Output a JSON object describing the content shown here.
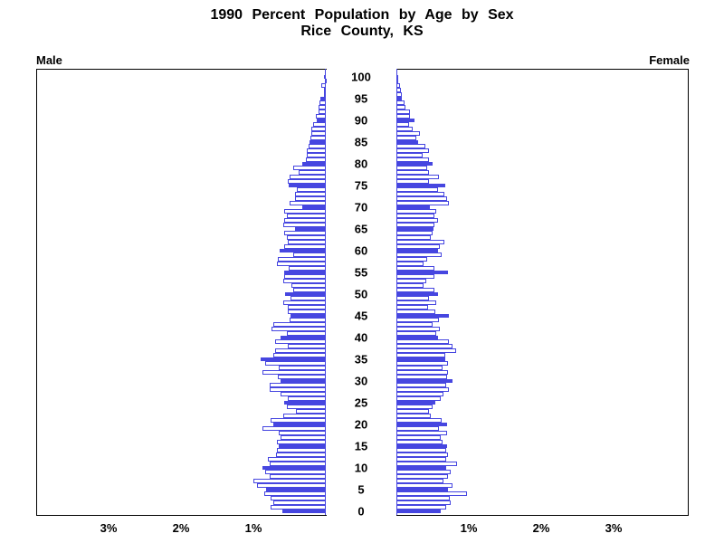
{
  "title": {
    "line1": "1990 Percent Population by Age by Sex",
    "line2": "Rice County, KS"
  },
  "panels": {
    "left_label": "Male",
    "right_label": "Female"
  },
  "colors": {
    "bar_blue": "#4646e0",
    "bar_fill": "#ffffff",
    "axis": "#000000"
  },
  "chart_data": {
    "type": "bar",
    "subtype": "population-pyramid",
    "title": "1990 Percent Population by Age by Sex Rice County, KS",
    "age_min": 0,
    "age_max": 100,
    "highlight_every": 5,
    "age_ticks": [
      0,
      5,
      10,
      15,
      20,
      25,
      30,
      35,
      40,
      45,
      50,
      55,
      60,
      65,
      70,
      75,
      80,
      85,
      90,
      95,
      100
    ],
    "x_axis": {
      "left_tick_labels": [
        "3%",
        "2%",
        "1%"
      ],
      "right_tick_labels": [
        "1%",
        "2%",
        "3%"
      ],
      "percent_per_tick": 1,
      "axis_max_percent": 4
    },
    "series": [
      {
        "name": "Male",
        "values": [
          0.6,
          0.76,
          0.73,
          0.76,
          0.85,
          0.82,
          0.95,
          1.0,
          0.78,
          0.84,
          0.88,
          0.77,
          0.8,
          0.69,
          0.67,
          0.65,
          0.67,
          0.63,
          0.65,
          0.87,
          0.72,
          0.76,
          0.59,
          0.41,
          0.54,
          0.58,
          0.53,
          0.63,
          0.78,
          0.78,
          0.62,
          0.66,
          0.88,
          0.65,
          0.84,
          0.9,
          0.72,
          0.7,
          0.52,
          0.7,
          0.62,
          0.54,
          0.75,
          0.72,
          0.5,
          0.49,
          0.53,
          0.53,
          0.59,
          0.49,
          0.56,
          0.45,
          0.48,
          0.59,
          0.57,
          0.58,
          0.51,
          0.67,
          0.66,
          0.45,
          0.64,
          0.57,
          0.53,
          0.54,
          0.58,
          0.43,
          0.59,
          0.57,
          0.54,
          0.57,
          0.33,
          0.5,
          0.43,
          0.43,
          0.4,
          0.51,
          0.53,
          0.5,
          0.38,
          0.45,
          0.33,
          0.28,
          0.26,
          0.26,
          0.24,
          0.23,
          0.21,
          0.2,
          0.2,
          0.17,
          0.13,
          0.14,
          0.1,
          0.1,
          0.09,
          0.08,
          0.03,
          0.03,
          0.06,
          0.01,
          0.02
        ]
      },
      {
        "name": "Female",
        "values": [
          0.61,
          0.69,
          0.75,
          0.74,
          0.98,
          0.71,
          0.77,
          0.65,
          0.71,
          0.75,
          0.69,
          0.84,
          0.69,
          0.71,
          0.69,
          0.7,
          0.64,
          0.61,
          0.7,
          0.59,
          0.7,
          0.62,
          0.47,
          0.45,
          0.5,
          0.54,
          0.61,
          0.65,
          0.72,
          0.69,
          0.78,
          0.7,
          0.71,
          0.64,
          0.71,
          0.67,
          0.68,
          0.83,
          0.78,
          0.73,
          0.58,
          0.55,
          0.6,
          0.5,
          0.59,
          0.73,
          0.54,
          0.44,
          0.55,
          0.45,
          0.58,
          0.53,
          0.37,
          0.41,
          0.53,
          0.71,
          0.52,
          0.37,
          0.42,
          0.62,
          0.57,
          0.6,
          0.66,
          0.47,
          0.5,
          0.51,
          0.53,
          0.58,
          0.53,
          0.55,
          0.46,
          0.73,
          0.7,
          0.66,
          0.58,
          0.68,
          0.45,
          0.59,
          0.45,
          0.42,
          0.5,
          0.45,
          0.36,
          0.45,
          0.4,
          0.3,
          0.28,
          0.33,
          0.23,
          0.17,
          0.25,
          0.19,
          0.19,
          0.12,
          0.11,
          0.08,
          0.08,
          0.06,
          0.05,
          0.02,
          0.01
        ]
      }
    ]
  }
}
